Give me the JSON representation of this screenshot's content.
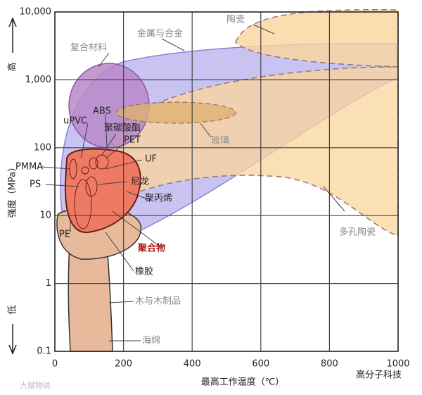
{
  "chart_data": {
    "type": "region-map",
    "xlabel": "最高工作温度（℃）",
    "ylabel": "强度（MPa）",
    "high": "高",
    "low": "低",
    "xlim": [
      0,
      1000
    ],
    "xticks": [
      0,
      200,
      400,
      600,
      800,
      1000
    ],
    "ylim": [
      0.1,
      10000
    ],
    "yscale": "log",
    "yticks": [
      0.1,
      1,
      10,
      100,
      {
        "value": 1000,
        "label": "1,000"
      },
      {
        "value": 10000,
        "label": "10,000"
      }
    ],
    "grid": true,
    "labels": [
      "陶瓷",
      "金属与合金",
      "复合材料",
      "ABS",
      "uPVC",
      "聚碳酸酯",
      "PET",
      "PMMA",
      "UF",
      "PS",
      "尼龙",
      "聚丙烯",
      "PE",
      "聚合物",
      "橡胶",
      "木与木制品",
      "海绵",
      "玻璃",
      "多孔陶瓷"
    ],
    "watermark_left": "大赋物说",
    "watermark_right": "高分子科技"
  }
}
